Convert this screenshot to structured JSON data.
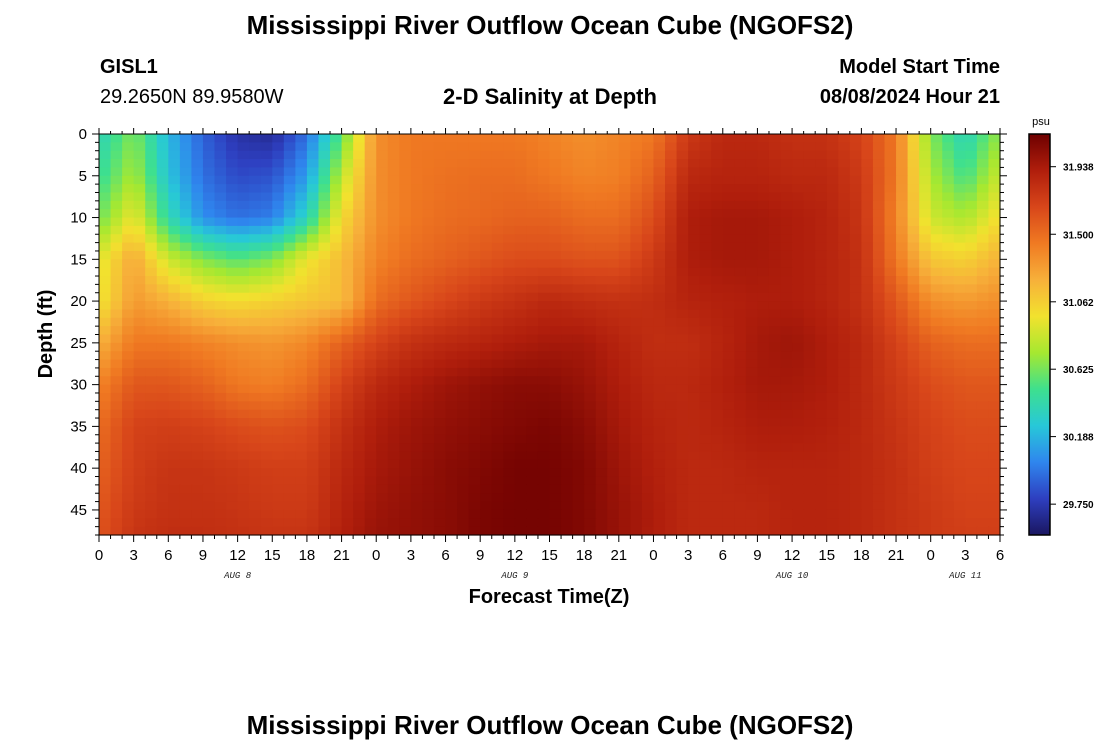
{
  "header": {
    "title": "Mississippi River Outflow Ocean Cube (NGOFS2)",
    "station": "GISL1",
    "coords": "29.2650N  89.9580W",
    "subtitle": "2-D Salinity at Depth",
    "model_start_label": "Model Start Time",
    "model_start_value": "08/08/2024 Hour 21"
  },
  "footer": {
    "title": "Mississippi River Outflow Ocean Cube (NGOFS2)"
  },
  "chart_data": {
    "type": "heatmap",
    "variable": "Salinity",
    "xlabel": "Forecast Time(Z)",
    "ylabel": "Depth (ft)",
    "x_tick_labels": [
      "0",
      "3",
      "6",
      "9",
      "12",
      "15",
      "18",
      "21",
      "0",
      "3",
      "6",
      "9",
      "12",
      "15",
      "18",
      "21",
      "0",
      "3",
      "6",
      "9",
      "12",
      "15",
      "18",
      "21",
      "0",
      "3",
      "6"
    ],
    "x_day_labels": [
      "AUG 8",
      "AUG 9",
      "AUG 10",
      "AUG 11"
    ],
    "y_ticks": [
      0,
      5,
      10,
      15,
      20,
      25,
      30,
      35,
      40,
      45
    ],
    "ylim": [
      0,
      48
    ],
    "y_inverted": true,
    "colorbar": {
      "unit": "psu",
      "ticks": [
        "29.750",
        "30.188",
        "30.625",
        "31.062",
        "31.500",
        "31.938"
      ],
      "range": [
        29.55,
        32.15
      ],
      "colors": [
        "#1a1660",
        "#2e3fc0",
        "#2f86ee",
        "#27c8d8",
        "#3ee08e",
        "#a6e830",
        "#f2e22e",
        "#f7b03a",
        "#f07a22",
        "#d8461a",
        "#b01e0c",
        "#6e0000"
      ]
    },
    "time_hours": [
      0,
      3,
      6,
      9,
      12,
      15,
      18,
      21,
      24,
      27,
      30,
      33,
      36,
      39,
      42,
      45,
      48,
      51,
      54,
      57,
      60,
      63,
      66,
      69,
      72,
      75,
      78
    ],
    "depths_ft": [
      0,
      5,
      10,
      15,
      20,
      25,
      30,
      35,
      40,
      45,
      48
    ],
    "salinity_psu": [
      [
        30.35,
        30.65,
        30.2,
        29.9,
        29.72,
        29.68,
        29.95,
        30.55,
        31.35,
        31.45,
        31.45,
        31.45,
        31.45,
        31.4,
        31.35,
        31.4,
        31.45,
        31.75,
        31.85,
        31.85,
        31.8,
        31.8,
        31.7,
        31.45,
        30.65,
        30.35,
        30.7
      ],
      [
        30.45,
        30.75,
        30.25,
        29.95,
        29.82,
        29.85,
        30.1,
        30.8,
        31.35,
        31.45,
        31.48,
        31.5,
        31.5,
        31.45,
        31.4,
        31.42,
        31.55,
        31.85,
        31.88,
        31.88,
        31.85,
        31.85,
        31.75,
        31.45,
        30.75,
        30.5,
        30.85
      ],
      [
        30.6,
        30.95,
        30.4,
        30.05,
        29.95,
        30.0,
        30.35,
        31.0,
        31.35,
        31.45,
        31.5,
        31.52,
        31.55,
        31.55,
        31.5,
        31.5,
        31.65,
        31.92,
        31.95,
        31.95,
        31.92,
        31.88,
        31.78,
        31.4,
        30.85,
        30.75,
        31.0
      ],
      [
        30.9,
        31.25,
        30.85,
        30.65,
        30.55,
        30.65,
        30.95,
        31.15,
        31.4,
        31.5,
        31.55,
        31.6,
        31.65,
        31.65,
        31.62,
        31.62,
        31.75,
        31.92,
        31.95,
        31.95,
        31.92,
        31.88,
        31.8,
        31.45,
        31.1,
        31.05,
        31.2
      ],
      [
        30.95,
        31.3,
        31.2,
        31.05,
        31.0,
        31.05,
        31.1,
        31.15,
        31.5,
        31.6,
        31.68,
        31.75,
        31.8,
        31.85,
        31.82,
        31.8,
        31.82,
        31.88,
        31.9,
        31.92,
        31.92,
        31.88,
        31.8,
        31.6,
        31.35,
        31.3,
        31.35
      ],
      [
        31.2,
        31.45,
        31.45,
        31.4,
        31.35,
        31.32,
        31.38,
        31.55,
        31.7,
        31.8,
        31.85,
        31.88,
        31.92,
        31.95,
        31.95,
        31.88,
        31.82,
        31.82,
        31.88,
        31.95,
        31.98,
        31.92,
        31.85,
        31.7,
        31.55,
        31.5,
        31.5
      ],
      [
        31.4,
        31.6,
        31.6,
        31.55,
        31.45,
        31.42,
        31.5,
        31.7,
        31.85,
        31.92,
        31.98,
        32.02,
        32.05,
        32.05,
        32.0,
        31.92,
        31.85,
        31.85,
        31.9,
        31.95,
        31.95,
        31.92,
        31.85,
        31.75,
        31.65,
        31.6,
        31.6
      ],
      [
        31.5,
        31.7,
        31.72,
        31.7,
        31.65,
        31.62,
        31.65,
        31.8,
        31.92,
        31.98,
        32.02,
        32.05,
        32.08,
        32.1,
        32.05,
        31.95,
        31.88,
        31.85,
        31.88,
        31.92,
        31.92,
        31.9,
        31.85,
        31.78,
        31.7,
        31.65,
        31.65
      ],
      [
        31.55,
        31.72,
        31.78,
        31.78,
        31.75,
        31.72,
        31.72,
        31.85,
        31.95,
        32.0,
        32.05,
        32.08,
        32.12,
        32.12,
        32.08,
        31.98,
        31.9,
        31.85,
        31.85,
        31.88,
        31.88,
        31.88,
        31.85,
        31.8,
        31.72,
        31.68,
        31.68
      ],
      [
        31.6,
        31.75,
        31.8,
        31.8,
        31.78,
        31.75,
        31.75,
        31.88,
        31.98,
        32.02,
        32.05,
        32.1,
        32.12,
        32.12,
        32.08,
        32.0,
        31.92,
        31.85,
        31.85,
        31.85,
        31.88,
        31.88,
        31.85,
        31.8,
        31.75,
        31.7,
        31.7
      ],
      [
        31.62,
        31.78,
        31.82,
        31.82,
        31.8,
        31.78,
        31.78,
        31.9,
        32.0,
        32.02,
        32.05,
        32.1,
        32.12,
        32.12,
        32.08,
        32.0,
        31.92,
        31.85,
        31.85,
        31.85,
        31.88,
        31.88,
        31.85,
        31.8,
        31.75,
        31.72,
        31.72
      ]
    ]
  }
}
